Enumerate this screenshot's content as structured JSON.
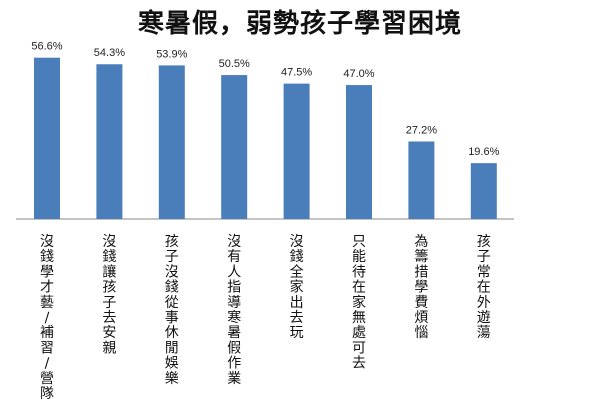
{
  "chart_data": {
    "type": "bar",
    "title": "寒暑假，弱勢孩子學習困境",
    "categories": [
      "沒錢學才藝/補習/營隊",
      "沒錢讓孩子去安親",
      "孩子沒錢從事休閒娛樂",
      "沒有人指導寒暑假作業",
      "沒錢全家出去玩",
      "只能待在家無處可去",
      "為籌措學費煩惱",
      "孩子常在外遊蕩"
    ],
    "values": [
      56.6,
      54.3,
      53.9,
      50.5,
      47.5,
      47.0,
      27.2,
      19.6
    ],
    "value_labels": [
      "56.6%",
      "54.3%",
      "53.9%",
      "50.5%",
      "47.5%",
      "47.0%",
      "27.2%",
      "19.6%"
    ],
    "unit": "%",
    "ylim": [
      0,
      60
    ],
    "grid": false,
    "legend": "none",
    "bar_color": "#4a7ebb",
    "axis_color": "#888888"
  }
}
